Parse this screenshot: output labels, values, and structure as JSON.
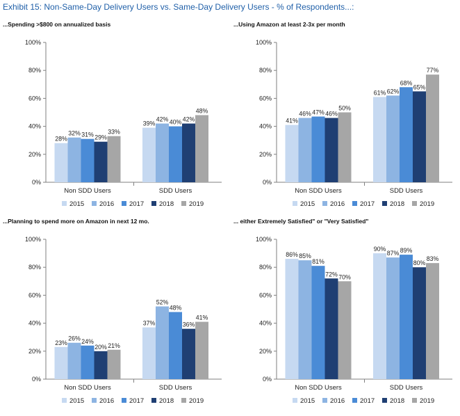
{
  "exhibit_title": "Exhibit 15: Non-Same-Day Delivery Users vs. Same-Day Delivery Users - % of Respondents...:",
  "colors": {
    "2015": "#c6d9f1",
    "2016": "#8db4e2",
    "2017": "#4a8bd6",
    "2018": "#1f3f73",
    "2019": "#a6a6a6"
  },
  "chart_data": [
    {
      "type": "bar",
      "title": "...Spending >$800 on annualized basis",
      "categories": [
        "Non SDD Users",
        "SDD Users"
      ],
      "ylim": [
        0,
        100
      ],
      "yticks": [
        "0%",
        "20%",
        "40%",
        "60%",
        "80%",
        "100%"
      ],
      "series": [
        {
          "name": "2015",
          "values": [
            28,
            39
          ]
        },
        {
          "name": "2016",
          "values": [
            32,
            42
          ]
        },
        {
          "name": "2017",
          "values": [
            31,
            40
          ]
        },
        {
          "name": "2018",
          "values": [
            29,
            42
          ]
        },
        {
          "name": "2019",
          "values": [
            33,
            48
          ]
        }
      ]
    },
    {
      "type": "bar",
      "title": "...Using Amazon at least 2-3x per month",
      "categories": [
        "Non SDD Users",
        "SDD Users"
      ],
      "ylim": [
        0,
        100
      ],
      "yticks": [
        "0%",
        "20%",
        "40%",
        "60%",
        "80%",
        "100%"
      ],
      "series": [
        {
          "name": "2015",
          "values": [
            41,
            61
          ]
        },
        {
          "name": "2016",
          "values": [
            46,
            62
          ]
        },
        {
          "name": "2017",
          "values": [
            47,
            68
          ]
        },
        {
          "name": "2018",
          "values": [
            46,
            65
          ]
        },
        {
          "name": "2019",
          "values": [
            50,
            77
          ]
        }
      ]
    },
    {
      "type": "bar",
      "title": "...Planning to spend more on Amazon in next 12 mo.",
      "categories": [
        "Non SDD Users",
        "SDD Users"
      ],
      "ylim": [
        0,
        100
      ],
      "yticks": [
        "0%",
        "20%",
        "40%",
        "60%",
        "80%",
        "100%"
      ],
      "series": [
        {
          "name": "2015",
          "values": [
            23,
            37
          ]
        },
        {
          "name": "2016",
          "values": [
            26,
            52
          ]
        },
        {
          "name": "2017",
          "values": [
            24,
            48
          ]
        },
        {
          "name": "2018",
          "values": [
            20,
            36
          ]
        },
        {
          "name": "2019",
          "values": [
            21,
            41
          ]
        }
      ]
    },
    {
      "type": "bar",
      "title": "... either Extremely Satisfied\" or \"Very Satisfied\"",
      "categories": [
        "Non SDD Users",
        "SDD Users"
      ],
      "ylim": [
        0,
        100
      ],
      "yticks": [
        "0%",
        "20%",
        "40%",
        "60%",
        "80%",
        "100%"
      ],
      "series": [
        {
          "name": "2015",
          "values": [
            86,
            90
          ]
        },
        {
          "name": "2016",
          "values": [
            85,
            87
          ]
        },
        {
          "name": "2017",
          "values": [
            81,
            89
          ]
        },
        {
          "name": "2018",
          "values": [
            72,
            80
          ]
        },
        {
          "name": "2019",
          "values": [
            70,
            83
          ]
        }
      ]
    }
  ]
}
